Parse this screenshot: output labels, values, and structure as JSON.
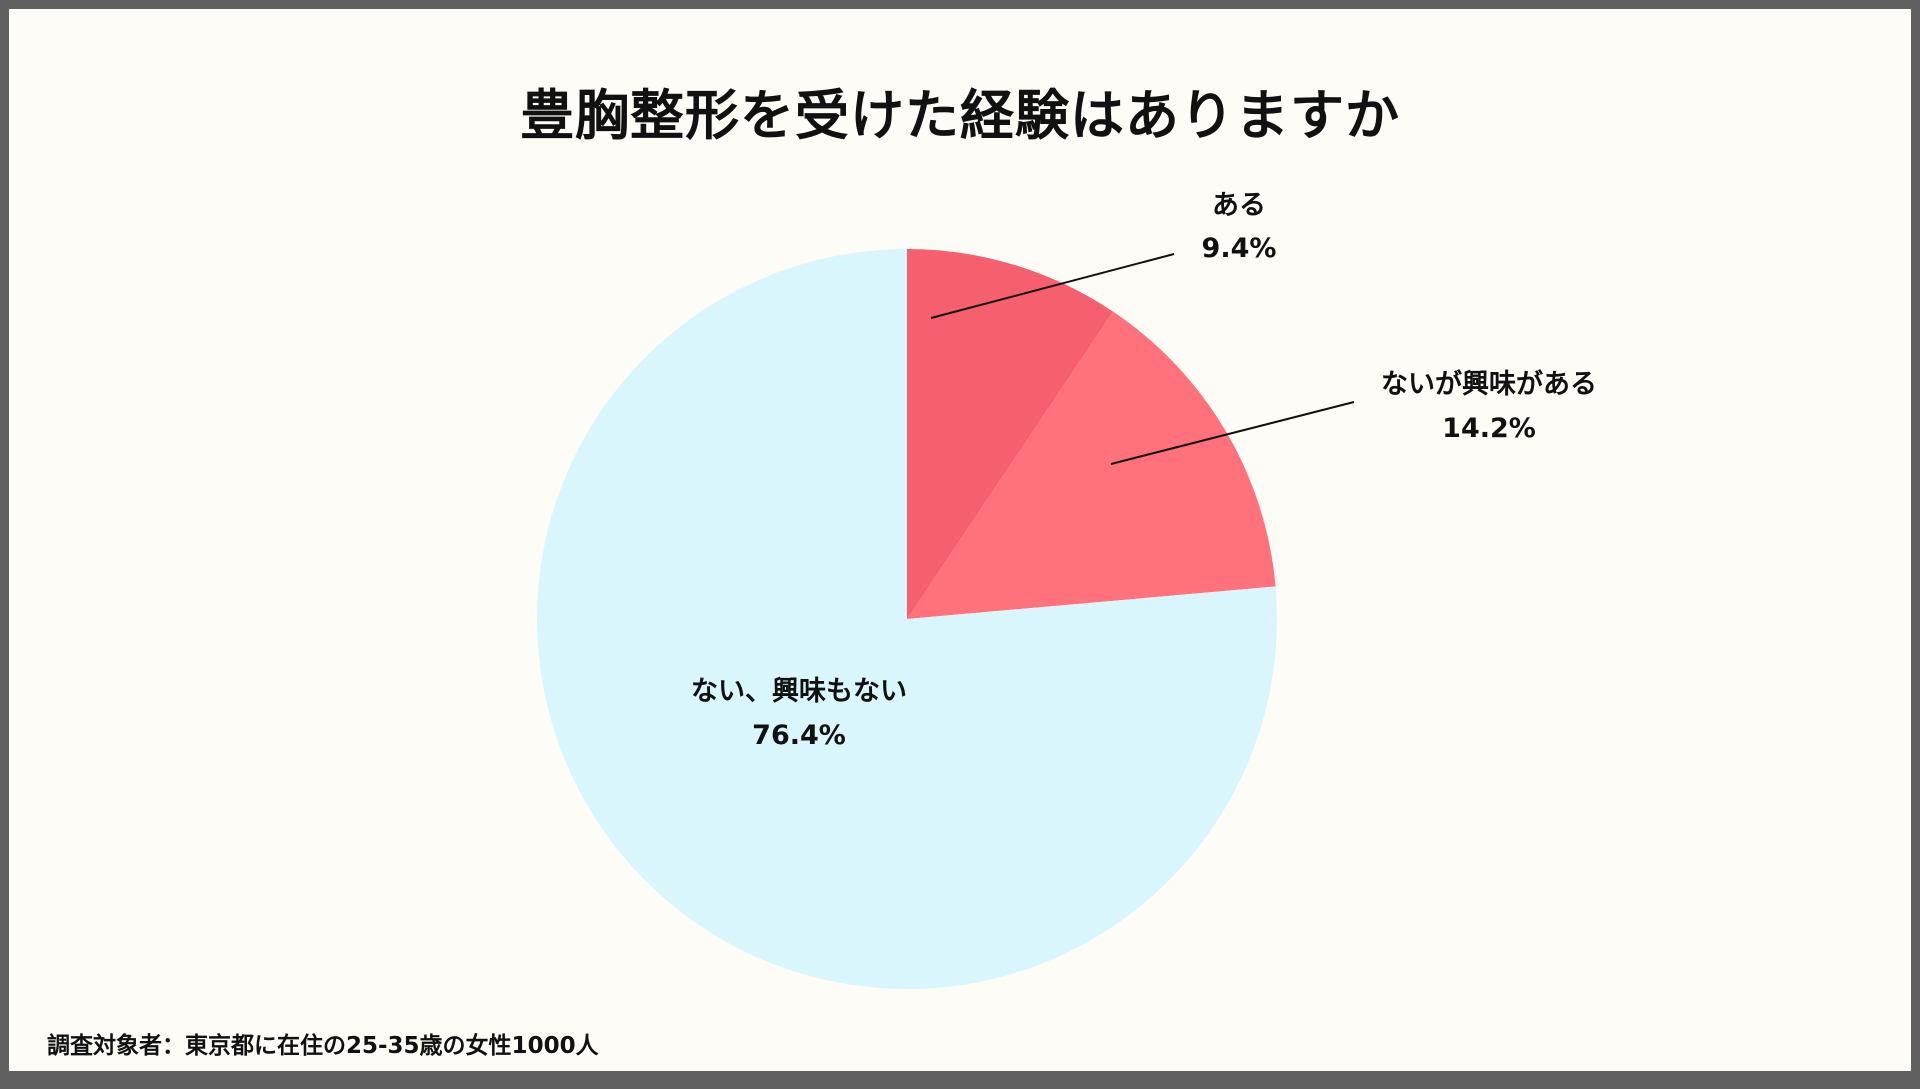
{
  "title": "豊胸整形を受けた経験はありますか",
  "footnote": "調査対象者：東京都に在住の25-35歳の女性1000人",
  "colors": {
    "background": "#fdfcf7",
    "frame": "#5f5f5f",
    "slice_aru": "#f65f6d",
    "slice_kyomi": "#ff717b",
    "slice_nai": "#d9f6fd",
    "leader": "#111111"
  },
  "chart_data": {
    "type": "pie",
    "title": "豊胸整形を受けた経験はありますか",
    "start": "12 o'clock, clockwise",
    "slices": [
      {
        "label": "ある",
        "value": 9.4,
        "value_label": "9.4%"
      },
      {
        "label": "ないが興味がある",
        "value": 14.2,
        "value_label": "14.2%"
      },
      {
        "label": "ない、興味もない",
        "value": 76.4,
        "value_label": "76.4%"
      }
    ]
  }
}
